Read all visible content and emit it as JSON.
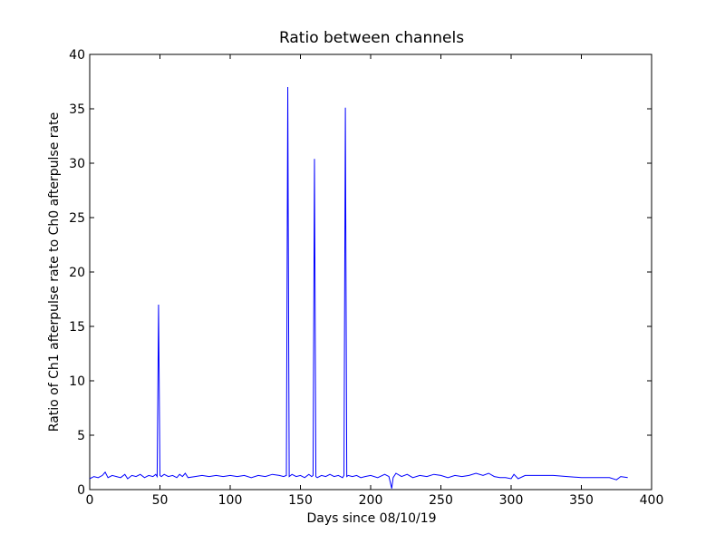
{
  "chart_data": {
    "type": "line",
    "title": "Ratio between channels",
    "xlabel": "Days since 08/10/19",
    "ylabel": "Ratio of Ch1 afterpulse rate to Ch0 afterpulse rate",
    "xlim": [
      0,
      400
    ],
    "ylim": [
      0,
      40
    ],
    "xticks": [
      0,
      50,
      100,
      150,
      200,
      250,
      300,
      350,
      400
    ],
    "yticks": [
      0,
      5,
      10,
      15,
      20,
      25,
      30,
      35,
      40
    ],
    "grid": false,
    "series": [
      {
        "color": "#0000ff",
        "x": [
          0,
          3,
          6,
          9,
          11,
          13,
          16,
          19,
          22,
          25,
          27,
          30,
          33,
          36,
          39,
          42,
          45,
          47,
          48,
          49,
          50,
          51,
          53,
          56,
          59,
          62,
          64,
          66,
          68,
          70,
          75,
          80,
          85,
          90,
          95,
          100,
          105,
          110,
          115,
          120,
          125,
          130,
          135,
          138,
          140,
          141,
          142,
          144,
          147,
          150,
          153,
          156,
          158,
          159,
          160,
          161,
          162,
          165,
          168,
          171,
          174,
          177,
          180,
          181,
          182,
          183,
          184,
          187,
          190,
          193,
          196,
          200,
          205,
          210,
          213,
          215,
          216,
          218,
          222,
          226,
          230,
          235,
          240,
          245,
          250,
          255,
          260,
          265,
          270,
          275,
          280,
          284,
          288,
          292,
          296,
          300,
          302,
          305,
          310,
          320,
          330,
          340,
          350,
          360,
          370,
          375,
          378,
          383
        ],
        "values": [
          1.0,
          1.2,
          1.1,
          1.3,
          1.6,
          1.1,
          1.3,
          1.2,
          1.1,
          1.4,
          1.0,
          1.3,
          1.2,
          1.4,
          1.1,
          1.3,
          1.2,
          1.4,
          1.2,
          17.0,
          1.3,
          1.2,
          1.4,
          1.2,
          1.3,
          1.1,
          1.4,
          1.2,
          1.5,
          1.1,
          1.2,
          1.3,
          1.2,
          1.3,
          1.2,
          1.3,
          1.2,
          1.3,
          1.1,
          1.3,
          1.2,
          1.4,
          1.3,
          1.2,
          1.3,
          37.0,
          1.2,
          1.4,
          1.2,
          1.3,
          1.1,
          1.4,
          1.2,
          1.3,
          30.4,
          1.2,
          1.1,
          1.3,
          1.2,
          1.4,
          1.2,
          1.3,
          1.1,
          1.3,
          35.1,
          1.2,
          1.3,
          1.2,
          1.3,
          1.1,
          1.2,
          1.3,
          1.1,
          1.4,
          1.2,
          0.1,
          1.1,
          1.5,
          1.2,
          1.4,
          1.1,
          1.3,
          1.2,
          1.4,
          1.3,
          1.1,
          1.3,
          1.2,
          1.3,
          1.5,
          1.3,
          1.5,
          1.2,
          1.1,
          1.1,
          1.0,
          1.4,
          1.0,
          1.3,
          1.3,
          1.3,
          1.2,
          1.1,
          1.1,
          1.1,
          0.9,
          1.2,
          1.1
        ]
      }
    ]
  }
}
